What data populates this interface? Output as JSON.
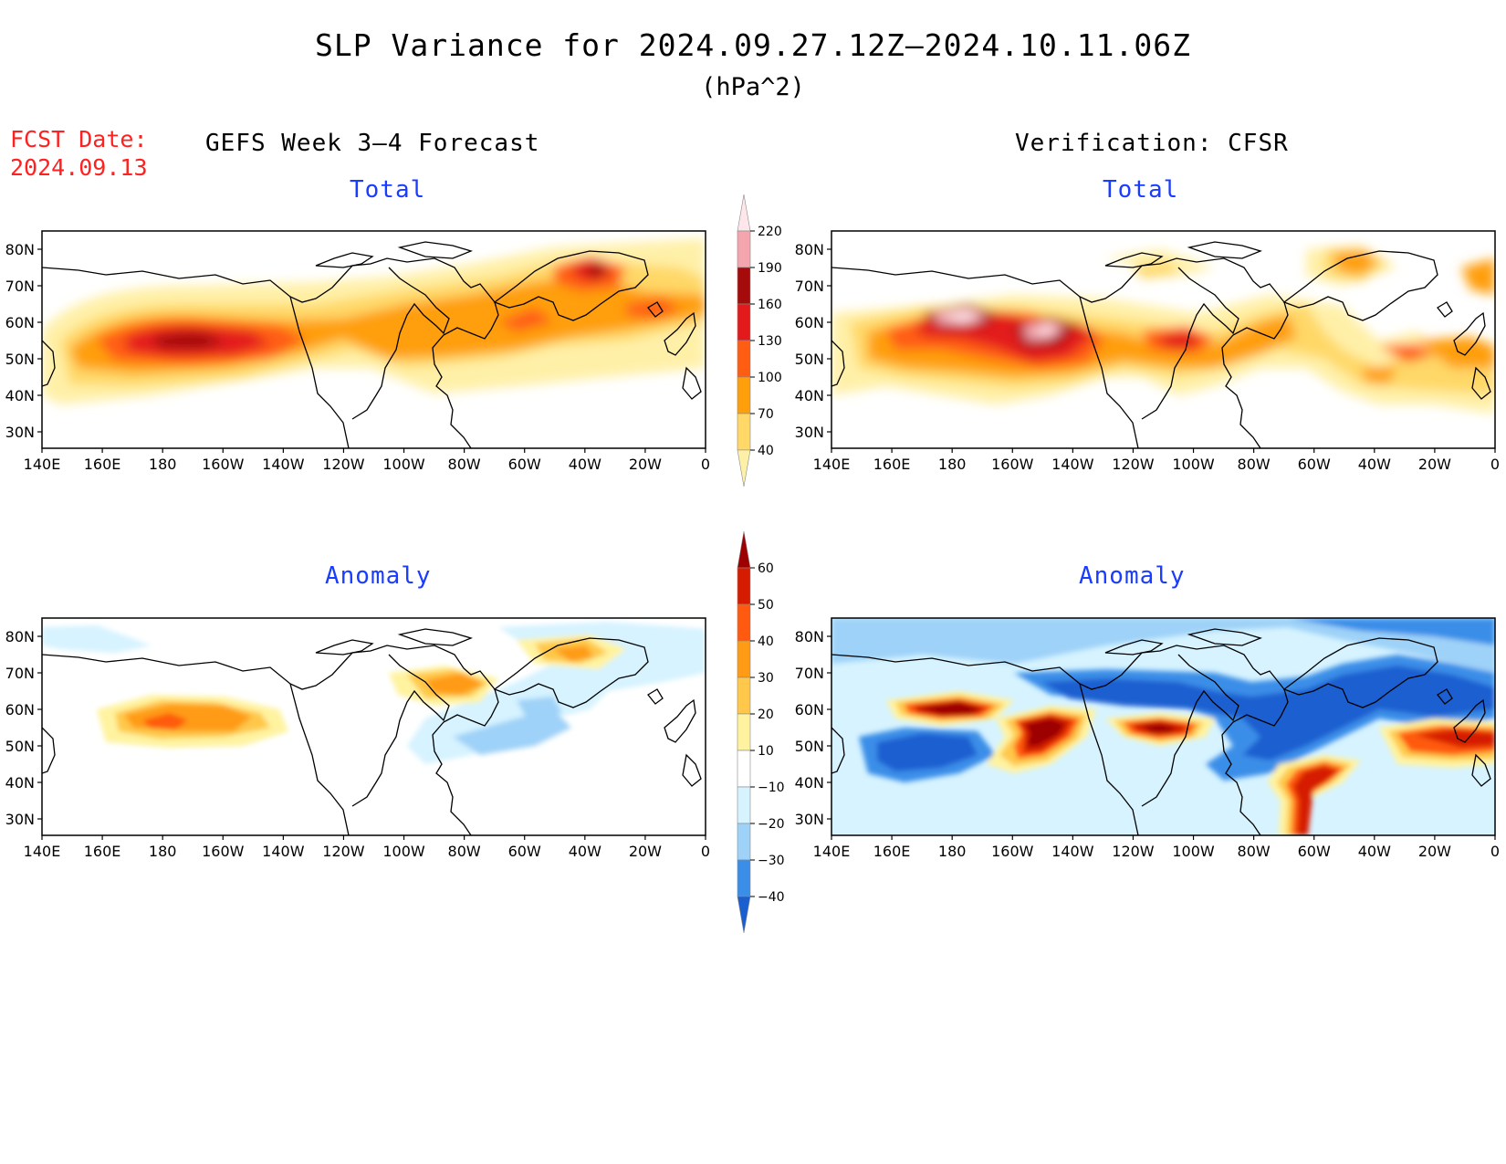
{
  "title": "SLP Variance for 2024.09.27.12Z–2024.10.11.06Z",
  "units": "(hPa^2)",
  "fcst_date": {
    "label": "FCST Date:",
    "value": "2024.09.13"
  },
  "columns": {
    "left": "GEFS Week 3–4 Forecast",
    "right": "Verification: CFSR"
  },
  "panels": {
    "top_left": "Total",
    "top_right": "Total",
    "bottom_left": "Anomaly",
    "bottom_right": "Anomaly"
  },
  "map_axes": {
    "lat_labels": [
      "80N",
      "70N",
      "60N",
      "50N",
      "40N",
      "30N"
    ],
    "lon_labels": [
      "140E",
      "160E",
      "180",
      "160W",
      "140W",
      "120W",
      "100W",
      "80W",
      "60W",
      "40W",
      "20W",
      "0"
    ]
  },
  "colorbar_total": {
    "levels": [
      "220",
      "190",
      "160",
      "130",
      "100",
      "70",
      "40"
    ],
    "colors": [
      "#ffe6ea",
      "#f4a6ae",
      "#a50b0b",
      "#e31a1c",
      "#ff5d12",
      "#ff9f0b",
      "#ffd867",
      "#fff0a8"
    ]
  },
  "colorbar_anomaly": {
    "levels": [
      "60",
      "50",
      "40",
      "30",
      "20",
      "10",
      "−10",
      "−20",
      "−30",
      "−40"
    ],
    "colors": [
      "#9c0000",
      "#d51c00",
      "#ff5a10",
      "#ff9b15",
      "#ffc84a",
      "#fff3a0",
      "#ffffff",
      "#d6f3ff",
      "#9fd2f8",
      "#3a8ee8",
      "#1a5fd0"
    ]
  },
  "palette": {
    "t1": "#fff0a8",
    "t2": "#ffd867",
    "t3": "#ff9f0b",
    "t4": "#ff5d12",
    "t5": "#e31a1c",
    "t6": "#a50b0b",
    "t7": "#f4a6ae",
    "t8": "#ffe6ea",
    "neg1": "#d6f3ff",
    "neg2": "#9fd2f8",
    "neg3": "#3a8ee8",
    "neg4": "#1a5fd0"
  }
}
